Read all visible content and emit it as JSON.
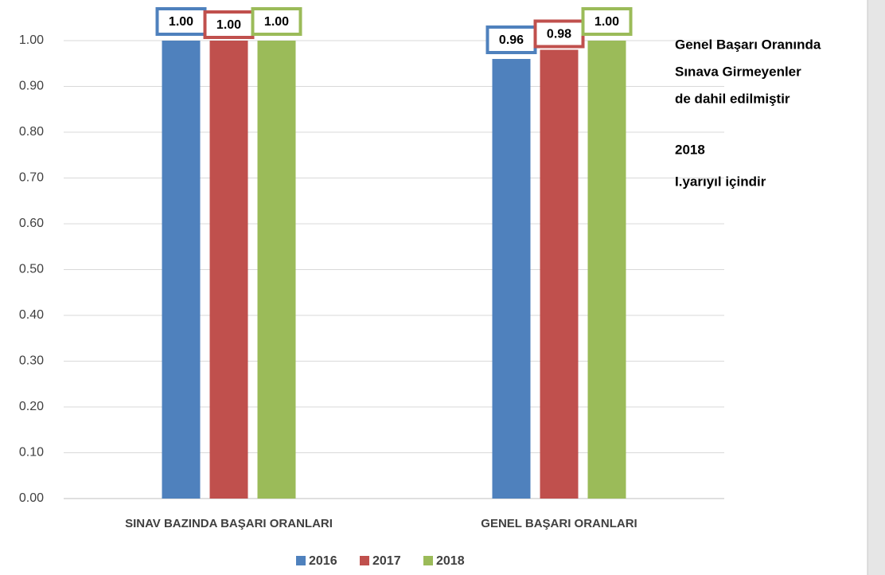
{
  "chart_data": {
    "type": "bar",
    "categories": [
      "SINAV BAZINDA BAŞARI ORANLARI",
      "GENEL BAŞARI ORANLARI"
    ],
    "series": [
      {
        "name": "2016",
        "color": "#4f81bd",
        "values": [
          1.0,
          0.96
        ],
        "value_labels": [
          "1.00",
          "0.96"
        ]
      },
      {
        "name": "2017",
        "color": "#c0504d",
        "values": [
          1.0,
          0.98
        ],
        "value_labels": [
          "1.00",
          "0.98"
        ]
      },
      {
        "name": "2018",
        "color": "#9bbb59",
        "values": [
          1.0,
          1.0
        ],
        "value_labels": [
          "1.00",
          "1.00"
        ]
      }
    ],
    "ylim": [
      0,
      1.0
    ],
    "yticks": [
      {
        "value": 0,
        "label": "0.00"
      },
      {
        "value": 0.1,
        "label": "0.10"
      },
      {
        "value": 0.2,
        "label": "0.20"
      },
      {
        "value": 0.3,
        "label": "0.30"
      },
      {
        "value": 0.4,
        "label": "0.40"
      },
      {
        "value": 0.5,
        "label": "0.50"
      },
      {
        "value": 0.6,
        "label": "0.60"
      },
      {
        "value": 0.7,
        "label": "0.70"
      },
      {
        "value": 0.8,
        "label": "0.80"
      },
      {
        "value": 0.9,
        "label": "0.90"
      },
      {
        "value": 1.0,
        "label": "1.00"
      }
    ],
    "grid": true,
    "legend": "bottom",
    "annotations": [
      "Genel Başarı Oranında",
      "Sınava Girmeyenler",
      "de dahil edilmiştir",
      "2018",
      "I.yarıyıl içindir"
    ]
  }
}
